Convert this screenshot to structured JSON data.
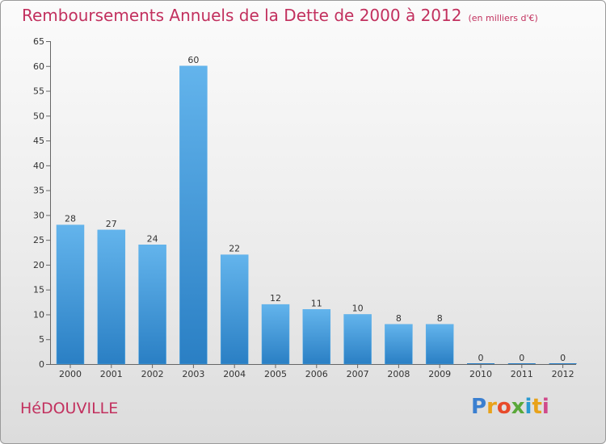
{
  "title": "Remboursements Annuels de la Dette de 2000 à 2012",
  "unit": "(en milliers d'€)",
  "commune": "HéDOUVILLE",
  "logo": {
    "letters": [
      "P",
      "r",
      "o",
      "x",
      "i",
      "t",
      "i"
    ],
    "colors": [
      "#3a7fd0",
      "#e8a21a",
      "#e84a2a",
      "#5aa83a",
      "#2a9ad0",
      "#e8a21a",
      "#d04a8a"
    ]
  },
  "colors": {
    "bar_top": "#63b4ec",
    "bar_bottom": "#2a7fc4",
    "title": "#c2305e"
  },
  "chart_data": {
    "type": "bar",
    "categories": [
      "2000",
      "2001",
      "2002",
      "2003",
      "2004",
      "2005",
      "2006",
      "2007",
      "2008",
      "2009",
      "2010",
      "2011",
      "2012"
    ],
    "values": [
      28,
      27,
      24,
      60,
      22,
      12,
      11,
      10,
      8,
      8,
      0,
      0,
      0
    ],
    "data_labels": [
      "28",
      "27",
      "24",
      "60",
      "22",
      "12",
      "11",
      "10",
      "8",
      "8",
      "0",
      "0",
      "0"
    ],
    "y_ticks": [
      0,
      5,
      10,
      15,
      20,
      25,
      30,
      35,
      40,
      45,
      50,
      55,
      60,
      65
    ],
    "ylim": [
      0,
      65
    ],
    "grid": false,
    "title": "Remboursements Annuels de la Dette de 2000 à 2012",
    "xlabel": "",
    "ylabel": ""
  }
}
